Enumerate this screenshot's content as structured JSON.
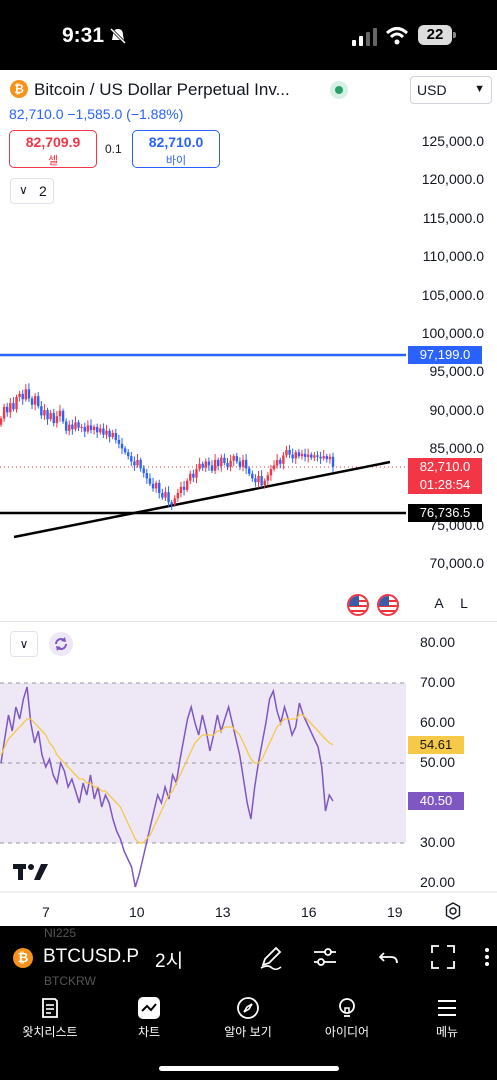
{
  "status_bar": {
    "time": "9:31",
    "battery": "22"
  },
  "header": {
    "symbol_title": "Bitcoin / US Dollar Perpetual Inv...",
    "coin_icon": "bitcoin-icon",
    "currency": "USD",
    "quote_line": "82,710.0  −1,585.0  (−1.88%)",
    "sell_price": "82,709.9",
    "sell_label": "셀",
    "spread": "0.1",
    "buy_price": "82,710.0",
    "buy_label": "바이",
    "indicator_count": "2"
  },
  "price_axis": {
    "ticks": [
      "125,000.0",
      "120,000.0",
      "115,000.0",
      "110,000.0",
      "105,000.0",
      "100,000.0",
      "95,000.0",
      "90,000.0",
      "85,000.0",
      "75,000.0",
      "70,000.0"
    ],
    "tags": {
      "blue_level": "97,199.0",
      "last_price": "82,710.0",
      "countdown": "01:28:54",
      "black_level": "76,736.5"
    }
  },
  "scale_buttons": {
    "auto": "A",
    "log": "L"
  },
  "rsi": {
    "ticks": [
      "80.00",
      "70.00",
      "60.00",
      "50.00",
      "30.00",
      "20.00"
    ],
    "ma_value": "54.61",
    "rsi_value": "40.50",
    "colors": {
      "rsi_line": "#7e57c2",
      "ma_line": "#f7c948",
      "band": "#ede7f6"
    }
  },
  "time_axis": {
    "labels": [
      "7",
      "10",
      "13",
      "16",
      "19"
    ]
  },
  "symbol_bar": {
    "symbol": "BTCUSD.P",
    "interval": "2시",
    "ghost_top": "NI225",
    "ghost_bottom": "BTCKRW"
  },
  "tabs": [
    {
      "label": "왓치리스트",
      "icon": "watchlist-icon"
    },
    {
      "label": "차트",
      "icon": "chart-icon"
    },
    {
      "label": "알아 보기",
      "icon": "compass-icon"
    },
    {
      "label": "아이디어",
      "icon": "lightbulb-icon"
    },
    {
      "label": "메뉴",
      "icon": "menu-icon"
    }
  ],
  "colors": {
    "up": "#f23645",
    "down": "#2962ff",
    "blue_line": "#2962ff",
    "accent": "#2962ff"
  }
}
